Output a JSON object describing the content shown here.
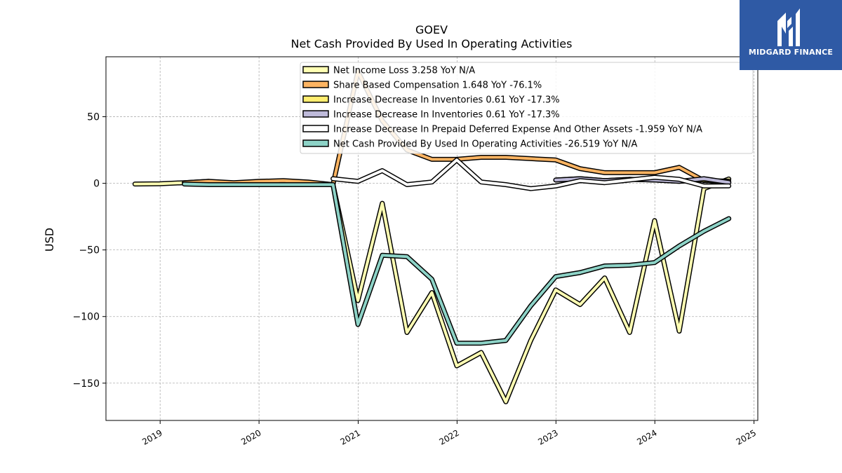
{
  "chart_data": {
    "type": "line",
    "title": "GOEV",
    "subtitle": "Net Cash Provided By Used In Operating Activities",
    "ylabel": "USD",
    "xlabel": "",
    "ylim": [
      -178,
      95
    ],
    "xlim": [
      "2018-06-15",
      "2025-01-15"
    ],
    "yticks": [
      -150,
      -100,
      -50,
      0,
      50
    ],
    "ytick_labels": [
      "−150",
      "−100",
      "−50",
      "0",
      "50"
    ],
    "xticks": [
      "2019-01-01",
      "2020-01-01",
      "2021-01-01",
      "2022-01-01",
      "2023-01-01",
      "2024-01-01",
      "2025-01-01"
    ],
    "xtick_labels": [
      "2019",
      "2020",
      "2021",
      "2022",
      "2023",
      "2024",
      "2025"
    ],
    "grid": true,
    "legend_position": "top-center",
    "series": [
      {
        "name": "Net Income Loss  3.258 YoY N/A",
        "color": "#ffffb3",
        "points": [
          [
            "2018-09-30",
            -0.5
          ],
          [
            "2018-12-31",
            -0.3
          ],
          [
            "2019-03-31",
            0.5
          ],
          [
            "2019-06-30",
            1.5
          ],
          [
            "2019-09-30",
            -0.5
          ],
          [
            "2019-12-31",
            0.5
          ],
          [
            "2020-03-31",
            1.0
          ],
          [
            "2020-06-30",
            0.5
          ],
          [
            "2020-09-30",
            -1.0
          ],
          [
            "2020-12-31",
            -88
          ],
          [
            "2021-03-31",
            -15
          ],
          [
            "2021-06-30",
            -112
          ],
          [
            "2021-09-30",
            -82
          ],
          [
            "2021-12-31",
            -137
          ],
          [
            "2022-03-31",
            -127
          ],
          [
            "2022-06-30",
            -164
          ],
          [
            "2022-09-30",
            -118
          ],
          [
            "2022-12-31",
            -80
          ],
          [
            "2023-03-31",
            -91
          ],
          [
            "2023-06-30",
            -71
          ],
          [
            "2023-09-30",
            -112
          ],
          [
            "2023-12-31",
            -28
          ],
          [
            "2024-03-31",
            -111
          ],
          [
            "2024-06-30",
            -4
          ],
          [
            "2024-09-30",
            3.258
          ]
        ]
      },
      {
        "name": "Share Based Compensation  1.648 YoY -76.1%",
        "color": "#fdb462",
        "points": [
          [
            "2019-03-31",
            0.5
          ],
          [
            "2019-06-30",
            1.5
          ],
          [
            "2019-09-30",
            0.5
          ],
          [
            "2019-12-31",
            1.5
          ],
          [
            "2020-03-31",
            2.0
          ],
          [
            "2020-06-30",
            1.0
          ],
          [
            "2020-09-30",
            -1.0
          ],
          [
            "2020-12-31",
            84
          ],
          [
            "2021-03-31",
            47
          ],
          [
            "2021-06-30",
            25
          ],
          [
            "2021-09-30",
            18
          ],
          [
            "2021-12-31",
            18
          ],
          [
            "2022-03-31",
            19.5
          ],
          [
            "2022-06-30",
            19.5
          ],
          [
            "2022-09-30",
            18.5
          ],
          [
            "2022-12-31",
            17.5
          ],
          [
            "2023-03-31",
            11
          ],
          [
            "2023-06-30",
            8
          ],
          [
            "2023-09-30",
            8
          ],
          [
            "2023-12-31",
            8
          ],
          [
            "2024-03-31",
            12
          ],
          [
            "2024-06-30",
            2
          ],
          [
            "2024-09-30",
            1.648
          ]
        ]
      },
      {
        "name": "Increase Decrease In Inventories  0.61 YoY -17.3%",
        "color": "#ffed6f",
        "points": [
          [
            "2022-12-31",
            2.5
          ],
          [
            "2023-03-31",
            3.5
          ],
          [
            "2023-06-30",
            2.0
          ],
          [
            "2023-09-30",
            3.0
          ],
          [
            "2023-12-31",
            2.5
          ],
          [
            "2024-03-31",
            1.5
          ],
          [
            "2024-06-30",
            2.5
          ],
          [
            "2024-09-30",
            0.61
          ]
        ]
      },
      {
        "name": "Increase Decrease In Inventories  0.61 YoY -17.3%",
        "color": "#bebada",
        "points": [
          [
            "2022-12-31",
            2.5
          ],
          [
            "2023-03-31",
            3.5
          ],
          [
            "2023-06-30",
            2.0
          ],
          [
            "2023-09-30",
            3.0
          ],
          [
            "2023-12-31",
            2.5
          ],
          [
            "2024-03-31",
            1.5
          ],
          [
            "2024-06-30",
            3.5
          ],
          [
            "2024-09-30",
            0.61
          ]
        ]
      },
      {
        "name": "Increase Decrease In Prepaid Deferred Expense And Other Assets  -1.959 YoY N/A",
        "color": "#ffffff",
        "points": [
          [
            "2020-09-30",
            3.5
          ],
          [
            "2020-12-31",
            1.5
          ],
          [
            "2021-03-31",
            9.5
          ],
          [
            "2021-06-30",
            -1.0
          ],
          [
            "2021-09-30",
            1.0
          ],
          [
            "2021-12-31",
            17.5
          ],
          [
            "2022-03-31",
            1.0
          ],
          [
            "2022-06-30",
            -1.0
          ],
          [
            "2022-09-30",
            -4.0
          ],
          [
            "2022-12-31",
            -2.0
          ],
          [
            "2023-03-31",
            2.0
          ],
          [
            "2023-06-30",
            0.5
          ],
          [
            "2023-09-30",
            2.5
          ],
          [
            "2023-12-31",
            4.5
          ],
          [
            "2024-03-31",
            3.0
          ],
          [
            "2024-06-30",
            -2.0
          ],
          [
            "2024-09-30",
            -1.959
          ]
        ]
      },
      {
        "name": "Net Cash Provided By Used In Operating Activities  -26.519 YoY N/A",
        "color": "#8dd3c7",
        "points": [
          [
            "2019-03-31",
            -0.5
          ],
          [
            "2019-06-30",
            -1.0
          ],
          [
            "2019-09-30",
            -1.0
          ],
          [
            "2019-12-31",
            -1.0
          ],
          [
            "2020-03-31",
            -1.0
          ],
          [
            "2020-06-30",
            -1.0
          ],
          [
            "2020-09-30",
            -1.0
          ],
          [
            "2020-12-31",
            -106
          ],
          [
            "2021-03-31",
            -54
          ],
          [
            "2021-06-30",
            -55
          ],
          [
            "2021-09-30",
            -72
          ],
          [
            "2021-12-31",
            -120
          ],
          [
            "2022-03-31",
            -120
          ],
          [
            "2022-06-30",
            -118
          ],
          [
            "2022-09-30",
            -92
          ],
          [
            "2022-12-31",
            -70
          ],
          [
            "2023-03-31",
            -67
          ],
          [
            "2023-06-30",
            -62
          ],
          [
            "2023-09-30",
            -61.5
          ],
          [
            "2023-12-31",
            -59.5
          ],
          [
            "2024-03-31",
            -47
          ],
          [
            "2024-06-30",
            -36
          ],
          [
            "2024-09-30",
            -26.519
          ]
        ]
      }
    ]
  },
  "logo": {
    "text": "MIDGARD FINANCE"
  }
}
